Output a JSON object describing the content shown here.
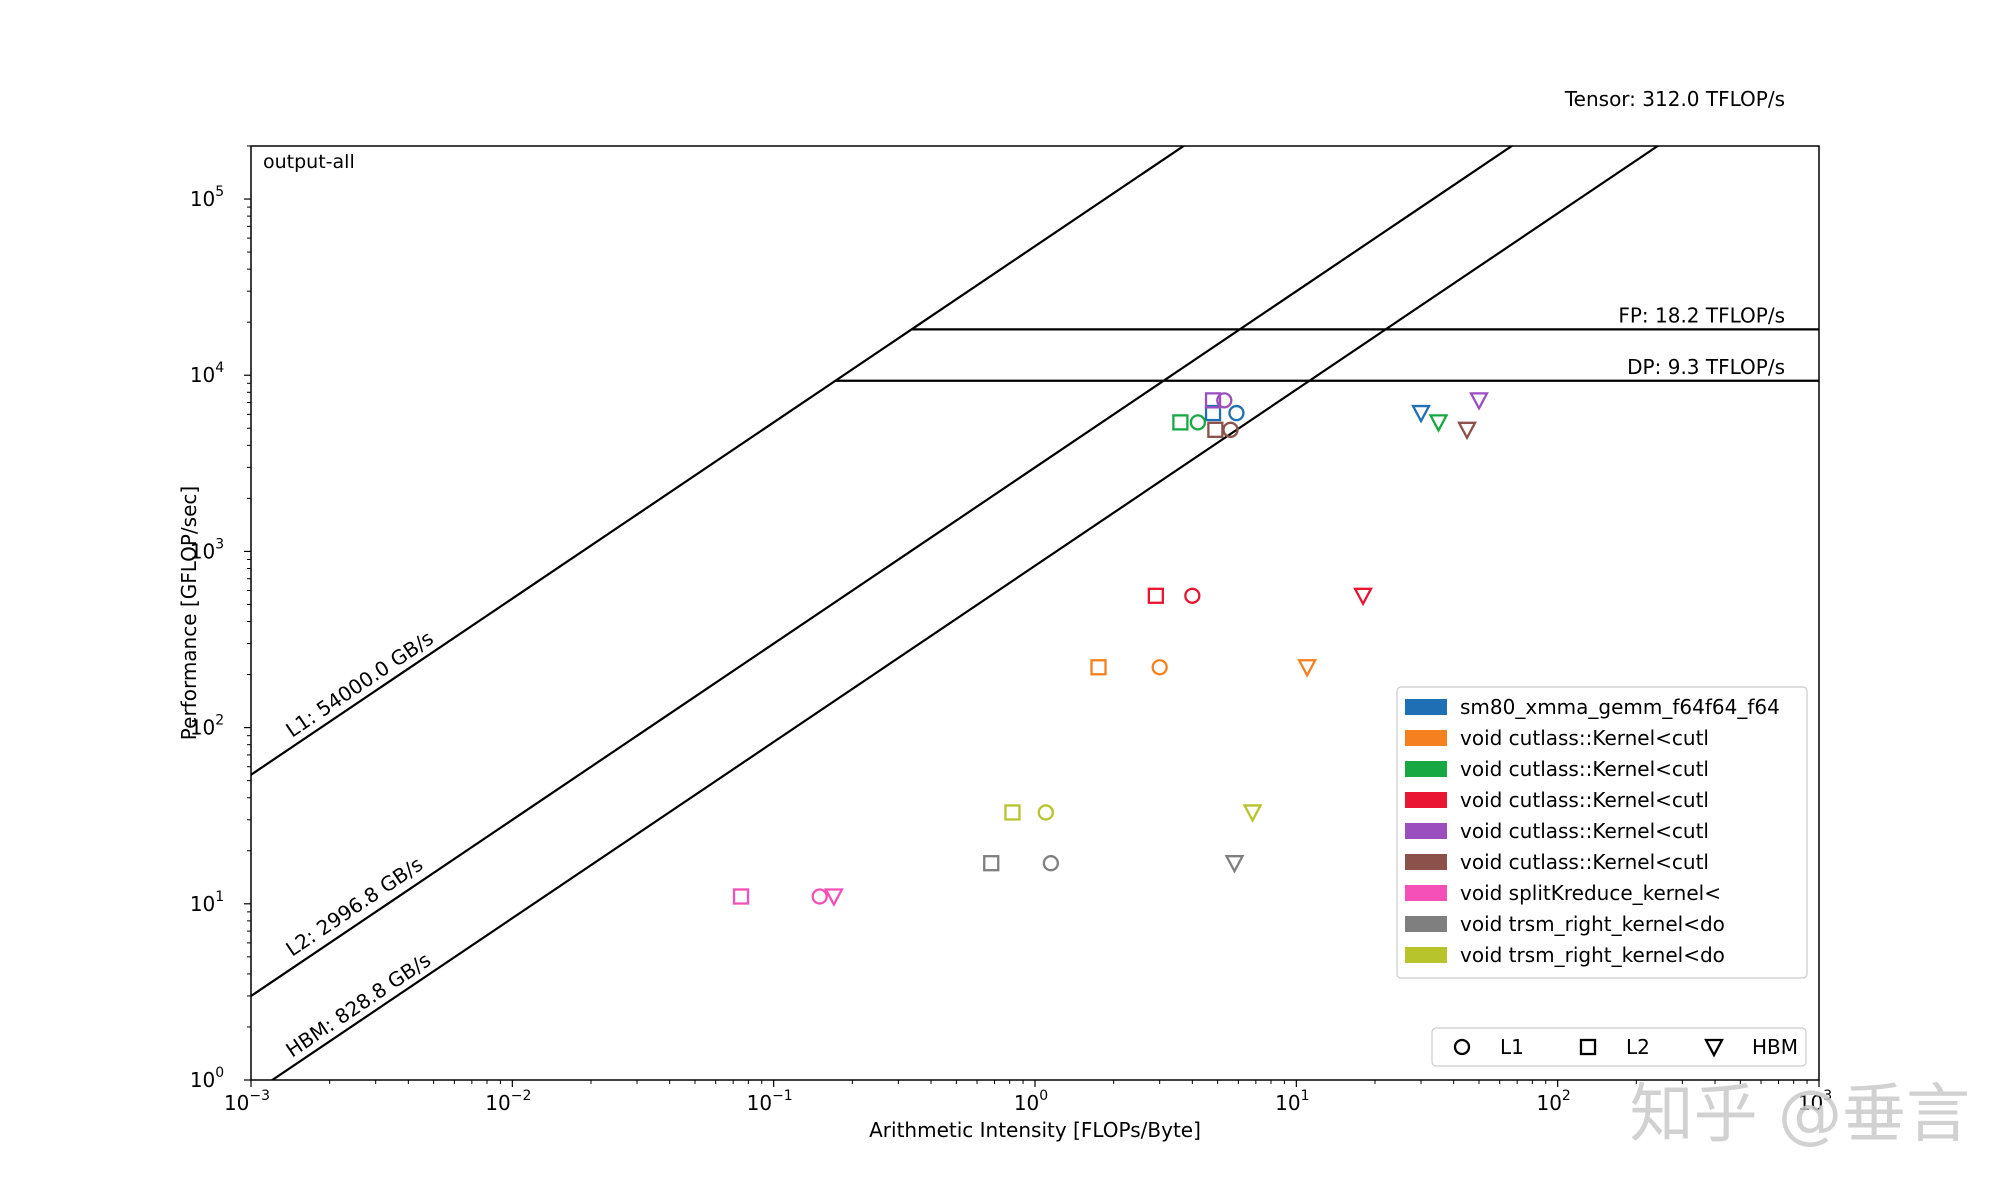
{
  "chart_data": {
    "type": "scatter",
    "title": "output-all",
    "xlabel": "Arithmetic Intensity [FLOPs/Byte]",
    "ylabel": "Performance [GFLOP/sec]",
    "xscale": "log",
    "yscale": "log",
    "xlim": [
      0.001,
      1000
    ],
    "ylim": [
      1,
      200000
    ],
    "x_ticks": [
      {
        "base": "10",
        "exp": "−3",
        "value": 0.001
      },
      {
        "base": "10",
        "exp": "−2",
        "value": 0.01
      },
      {
        "base": "10",
        "exp": "−1",
        "value": 0.1
      },
      {
        "base": "10",
        "exp": "0",
        "value": 1
      },
      {
        "base": "10",
        "exp": "1",
        "value": 10
      },
      {
        "base": "10",
        "exp": "2",
        "value": 100
      },
      {
        "base": "10",
        "exp": "3",
        "value": 1000
      }
    ],
    "y_ticks": [
      {
        "base": "10",
        "exp": "0",
        "value": 1
      },
      {
        "base": "10",
        "exp": "1",
        "value": 10
      },
      {
        "base": "10",
        "exp": "2",
        "value": 100
      },
      {
        "base": "10",
        "exp": "3",
        "value": 1000
      },
      {
        "base": "10",
        "exp": "4",
        "value": 10000
      },
      {
        "base": "10",
        "exp": "5",
        "value": 100000
      }
    ],
    "ceilings": {
      "bandwidth": [
        {
          "label": "L1: 54000.0 GB/s",
          "gbps": 54000.0
        },
        {
          "label": "L2: 2996.8 GB/s",
          "gbps": 2996.8
        },
        {
          "label": "HBM: 828.8 GB/s",
          "gbps": 828.8
        }
      ],
      "compute": [
        {
          "label": "Tensor: 312.0 TFLOP/s",
          "gflops": 312000,
          "offscale": true
        },
        {
          "label": "FP: 18.2 TFLOP/s",
          "gflops": 18200,
          "start_bw_gbps": 54000.0
        },
        {
          "label": "DP: 9.3 TFLOP/s",
          "gflops": 9300,
          "start_bw_gbps": 54000.0
        }
      ]
    },
    "series": [
      {
        "name": "sm80_xmma_gemm_f64f64_f64",
        "color": "#1f6fb4",
        "perf": 6100,
        "ai": {
          "L1": 5.9,
          "L2": 4.8,
          "HBM": 30
        }
      },
      {
        "name": "void cutlass::Kernel<cutl",
        "color": "#f5801f",
        "perf": 220,
        "ai": {
          "L1": 3.0,
          "L2": 1.75,
          "HBM": 11
        }
      },
      {
        "name": "void cutlass::Kernel<cutl",
        "color": "#17a844",
        "perf": 5400,
        "ai": {
          "L1": 4.2,
          "L2": 3.6,
          "HBM": 35
        }
      },
      {
        "name": "void cutlass::Kernel<cutl",
        "color": "#ea1532",
        "perf": 560,
        "ai": {
          "L1": 4.0,
          "L2": 2.9,
          "HBM": 18
        }
      },
      {
        "name": "void cutlass::Kernel<cutl",
        "color": "#9b4fbf",
        "perf": 7200,
        "ai": {
          "L1": 5.3,
          "L2": 4.8,
          "HBM": 50
        }
      },
      {
        "name": "void cutlass::Kernel<cutl",
        "color": "#8c514a",
        "perf": 4900,
        "ai": {
          "L1": 5.6,
          "L2": 4.9,
          "HBM": 45
        }
      },
      {
        "name": "void splitKreduce_kernel<",
        "color": "#f54fb8",
        "perf": 11,
        "ai": {
          "L1": 0.15,
          "L2": 0.075,
          "HBM": 0.17
        }
      },
      {
        "name": "void trsm_right_kernel<do",
        "color": "#7f7f7f",
        "perf": 17,
        "ai": {
          "L1": 1.15,
          "L2": 0.68,
          "HBM": 5.8
        }
      },
      {
        "name": "void trsm_right_kernel<do",
        "color": "#b7c42c",
        "perf": 33,
        "ai": {
          "L1": 1.1,
          "L2": 0.82,
          "HBM": 6.8
        }
      }
    ],
    "marker_legend": [
      {
        "label": "L1",
        "shape": "circle"
      },
      {
        "label": "L2",
        "shape": "square"
      },
      {
        "label": "HBM",
        "shape": "triangle-down"
      }
    ],
    "legend_position": "lower-right"
  },
  "watermark": "知乎 @垂言"
}
